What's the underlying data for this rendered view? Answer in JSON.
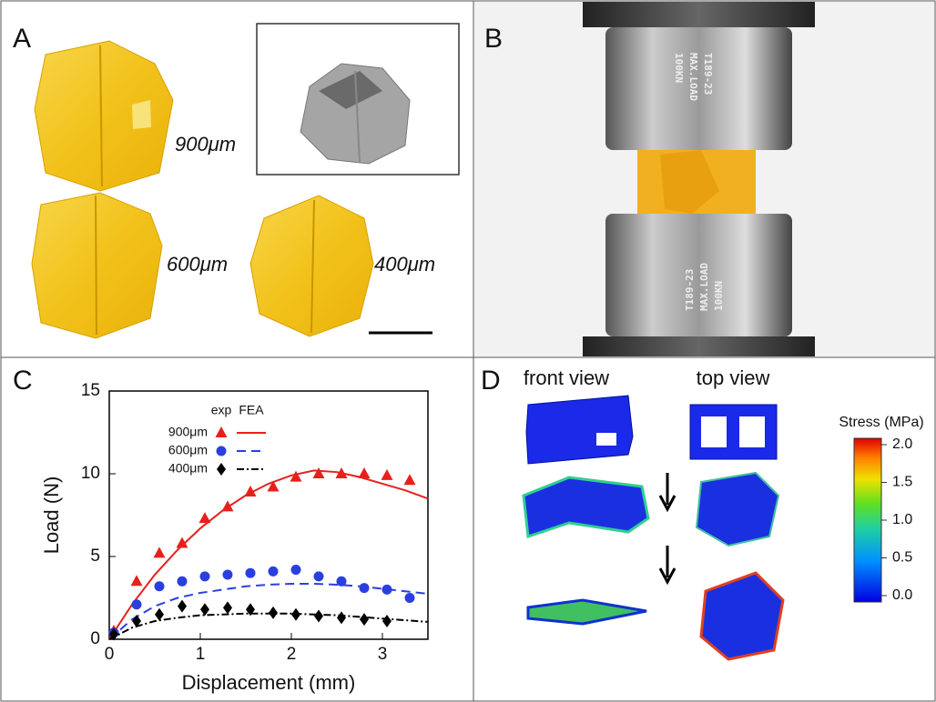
{
  "panels": {
    "A": {
      "letter": "A",
      "sizes": [
        "900μm",
        "600μm",
        "400μm"
      ]
    },
    "B": {
      "letter": "B",
      "stamp": [
        "100KN",
        "MAX.LOAD",
        "T189-23"
      ]
    },
    "D": {
      "letter": "D",
      "views": [
        "front view",
        "top view"
      ],
      "colorbar": {
        "title": "Stress (MPa)",
        "ticks": [
          {
            "value": 2,
            "label": "2.0"
          },
          {
            "value": 1.5,
            "label": "1.5"
          },
          {
            "value": 1,
            "label": "1.0"
          },
          {
            "value": 0.5,
            "label": "0.5"
          },
          {
            "value": 0,
            "label": "0.0"
          }
        ]
      }
    }
  },
  "chart_data": {
    "type": "load-displacement",
    "letter": "C",
    "x_label": "Displacement (mm)",
    "y_label": "Load (N)",
    "xlim": [
      0,
      3.5
    ],
    "ylim": [
      0,
      15
    ],
    "xticks": [
      0,
      1,
      2,
      3
    ],
    "yticks": [
      0,
      5,
      10,
      15
    ],
    "legend_headers": [
      "exp",
      "FEA"
    ],
    "fea_x": [
      0,
      0.25,
      0.5,
      0.75,
      1,
      1.25,
      1.5,
      1.75,
      2,
      2.25,
      2.5,
      2.75,
      3,
      3.25,
      3.5
    ],
    "series": [
      {
        "name": "900μm",
        "color": "#e8201c",
        "marker": "triangle",
        "dash": "none",
        "exp": {
          "x": [
            0.05,
            0.3,
            0.55,
            0.8,
            1.05,
            1.3,
            1.55,
            1.8,
            2.05,
            2.3,
            2.55,
            2.8,
            3.05,
            3.3
          ],
          "values": [
            0.5,
            3.5,
            5.2,
            5.8,
            7.3,
            8.0,
            8.9,
            9.2,
            9.8,
            10.0,
            10.0,
            10.0,
            9.9,
            9.6
          ]
        },
        "fea": [
          0,
          2.1,
          3.9,
          5.4,
          6.7,
          7.8,
          8.7,
          9.4,
          9.9,
          10.2,
          10.1,
          9.8,
          9.4,
          9.0,
          8.5
        ]
      },
      {
        "name": "600μm",
        "color": "#2a3fe0",
        "marker": "circle",
        "dash": "10 6",
        "exp": {
          "x": [
            0.05,
            0.3,
            0.55,
            0.8,
            1.05,
            1.3,
            1.55,
            1.8,
            2.05,
            2.3,
            2.55,
            2.8,
            3.05,
            3.3
          ],
          "values": [
            0.4,
            2.1,
            3.2,
            3.5,
            3.8,
            3.9,
            4.0,
            4.1,
            4.2,
            3.8,
            3.5,
            3.1,
            3.0,
            2.5
          ]
        },
        "fea": [
          0,
          1.2,
          2.0,
          2.5,
          2.8,
          3.0,
          3.2,
          3.3,
          3.35,
          3.35,
          3.3,
          3.2,
          3.05,
          2.9,
          2.75
        ]
      },
      {
        "name": "400μm",
        "color": "#000000",
        "marker": "diamond",
        "dash": "8 3 2 3",
        "exp": {
          "x": [
            0.05,
            0.3,
            0.55,
            0.8,
            1.05,
            1.3,
            1.55,
            1.8,
            2.05,
            2.3,
            2.55,
            2.8,
            3.05
          ],
          "values": [
            0.3,
            1.1,
            1.5,
            2.0,
            1.8,
            1.9,
            1.8,
            1.6,
            1.5,
            1.4,
            1.3,
            1.2,
            1.1
          ]
        },
        "fea": [
          0,
          0.7,
          1.1,
          1.3,
          1.45,
          1.5,
          1.55,
          1.55,
          1.55,
          1.5,
          1.45,
          1.35,
          1.25,
          1.15,
          1.05
        ]
      }
    ]
  }
}
